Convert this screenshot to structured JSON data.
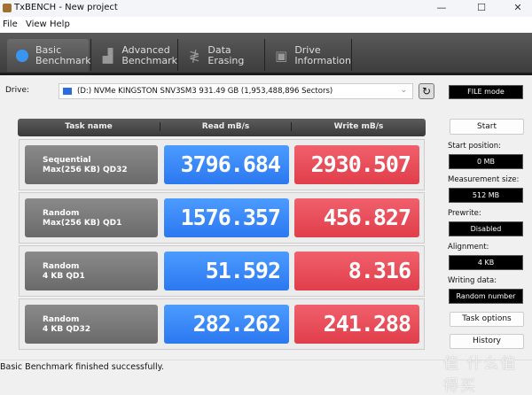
{
  "window": {
    "title": "TxBENCH - New project",
    "minimize": "—",
    "maximize": "☐",
    "close": "✕"
  },
  "menu": [
    "File",
    "View",
    "Help"
  ],
  "tabs": [
    {
      "line1": "Basic",
      "line2": "Benchmark",
      "icon": "stopwatch-icon",
      "active": true
    },
    {
      "line1": "Advanced",
      "line2": "Benchmark",
      "icon": "bar-chart-icon",
      "active": false
    },
    {
      "line1": "Data Erasing",
      "line2": "",
      "icon": "eraser-icon",
      "active": false
    },
    {
      "line1": "Drive",
      "line2": "Information",
      "icon": "drive-icon",
      "active": false
    }
  ],
  "drive": {
    "label": "Drive:",
    "selected": "(D:) NVMe KINGSTON SNV3SM3  931.49 GB (1,953,488,896 Sectors)",
    "mode": "FILE mode"
  },
  "table": {
    "headers": [
      "Task name",
      "Read mB/s",
      "Write mB/s"
    ],
    "rows": [
      {
        "name1": "Sequential",
        "name2": "Max(256 KB) QD32",
        "read": "3796.684",
        "write": "2930.507"
      },
      {
        "name1": "Random",
        "name2": "Max(256 KB) QD1",
        "read": "1576.357",
        "write": "456.827"
      },
      {
        "name1": "Random",
        "name2": "4 KB QD1",
        "read": "51.592",
        "write": "8.316"
      },
      {
        "name1": "Random",
        "name2": "4 KB QD32",
        "read": "282.262",
        "write": "241.288"
      }
    ]
  },
  "side": {
    "start": "Start",
    "fields": [
      {
        "label": "Start position:",
        "value": "0 MB"
      },
      {
        "label": "Measurement size:",
        "value": "512 MB"
      },
      {
        "label": "Prewrite:",
        "value": "Disabled"
      },
      {
        "label": "Alignment:",
        "value": "4 KB"
      },
      {
        "label": "Writing data:",
        "value": "Random number"
      }
    ],
    "task_options": "Task options",
    "history": "History"
  },
  "status": "Basic Benchmark finished successfully.",
  "watermark": "值 什么值得买",
  "colors": {
    "read": "#2b78f0",
    "write": "#e03e4a",
    "toolbar": "#4a4a4a"
  }
}
